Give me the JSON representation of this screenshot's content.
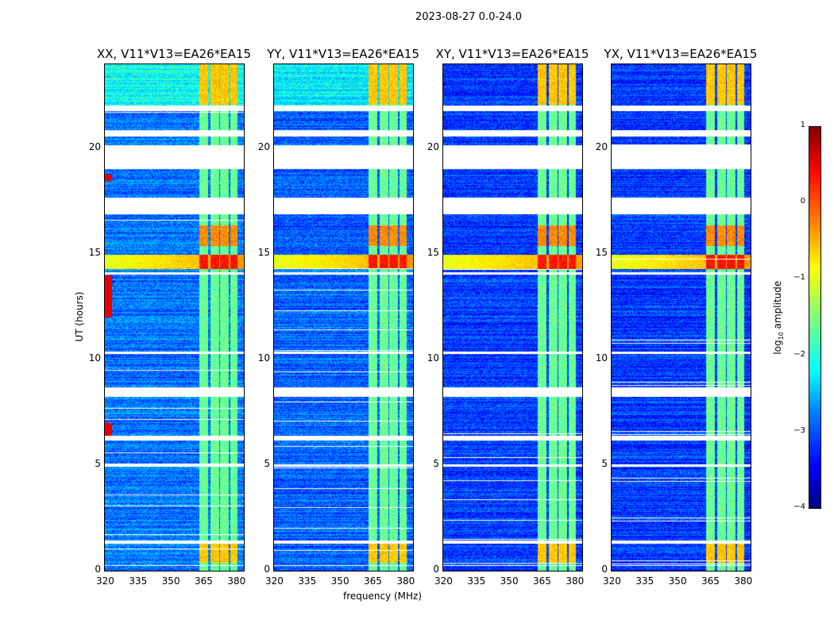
{
  "chart_data": {
    "type": "heatmap",
    "title": "2023-08-27 0.0-24.0",
    "xlabel": "frequency (MHz)",
    "ylabel": "UT (hours)",
    "xlim": [
      320,
      383.5
    ],
    "ylim": [
      0,
      24
    ],
    "xticks": [
      "320",
      "335",
      "350",
      "365",
      "380"
    ],
    "yticks": [
      "0",
      "5",
      "10",
      "15",
      "20"
    ],
    "colorbar": {
      "label": "log10 amplitude",
      "label_main": "log",
      "label_sub": "10",
      "label_rest": " amplitude",
      "range": [
        -4,
        1
      ],
      "ticks": [
        "1",
        "0",
        "−1",
        "−2",
        "−3",
        "−4"
      ],
      "colormap": "jet"
    },
    "panels": [
      {
        "title": "XX, V11*V13=EA26*EA15",
        "baseline": -2.8,
        "lowband_rfi": true
      },
      {
        "title": "YY, V11*V13=EA26*EA15",
        "baseline": -2.9,
        "lowband_rfi": false
      },
      {
        "title": "XY, V11*V13=EA26*EA15",
        "baseline": -3.1,
        "lowband_rfi": false
      },
      {
        "title": "YX, V11*V13=EA26*EA15",
        "baseline": -3.1,
        "lowband_rfi": false
      }
    ],
    "flagged_hours": [
      [
        0.25,
        0.3
      ],
      [
        1.3,
        1.45
      ],
      [
        4.95,
        5.05
      ],
      [
        6.2,
        6.4
      ],
      [
        8.25,
        8.7
      ],
      [
        10.3,
        10.4
      ],
      [
        14.05,
        14.15
      ],
      [
        16.9,
        17.7
      ],
      [
        19.05,
        20.2
      ],
      [
        20.6,
        20.9
      ],
      [
        21.8,
        22.05
      ]
    ],
    "rfi_band_mhz": [
      [
        363,
        367
      ],
      [
        368,
        372
      ],
      [
        372.5,
        376.5
      ],
      [
        377,
        380.5
      ]
    ],
    "rfi_levels": [
      {
        "hours": [
          0.4,
          1.3
        ],
        "level": -0.6
      },
      {
        "hours": [
          14.3,
          15.0
        ],
        "level": 0.3
      },
      {
        "hours": [
          15.4,
          16.4
        ],
        "level": -0.3
      },
      {
        "hours": [
          22.1,
          24.0
        ],
        "level": -0.6
      },
      {
        "default": true,
        "level": -1.6
      }
    ]
  }
}
